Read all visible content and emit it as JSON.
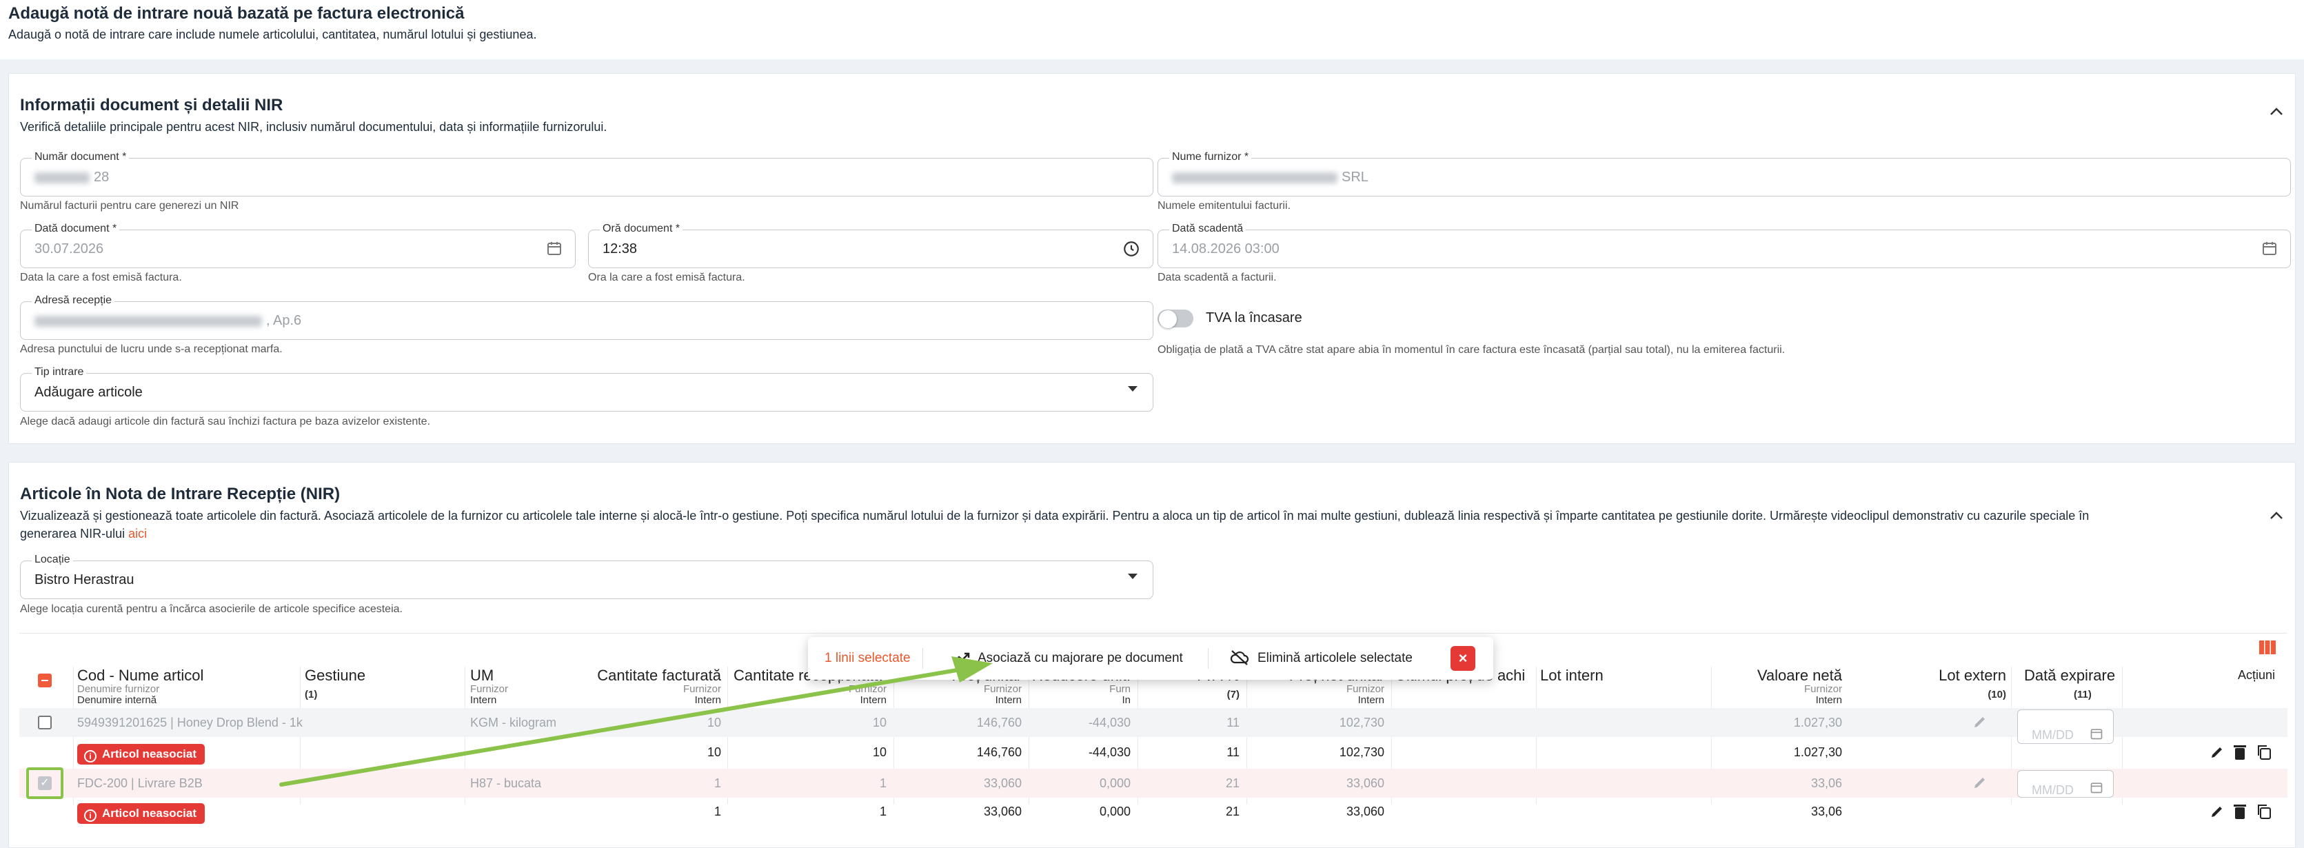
{
  "header": {
    "title": "Adaugă notă de intrare nouă bazată pe factura electronică",
    "subtitle": "Adaugă o notă de intrare care include numele articolului, cantitatea, numărul lotului și gestiunea."
  },
  "doc_section": {
    "title": "Informații document și detalii NIR",
    "subtitle": "Verifică detaliile principale pentru acest NIR, inclusiv numărul documentului, data și informațiile furnizorului.",
    "fields": {
      "numar_document": {
        "label": "Număr document *",
        "value": "28",
        "helper": "Numărul facturii pentru care generezi un NIR"
      },
      "nume_furnizor": {
        "label": "Nume furnizor *",
        "value": "SRL",
        "helper": "Numele emitentului facturii."
      },
      "data_document": {
        "label": "Dată document *",
        "value": "30.07.2026",
        "helper": "Data la care a fost emisă factura."
      },
      "ora_document": {
        "label": "Oră document *",
        "value": "12:38",
        "helper": "Ora la care a fost emisă factura."
      },
      "data_scadenta": {
        "label": "Dată scadentă",
        "value": "14.08.2026 03:00",
        "helper": "Data scadentă a facturii."
      },
      "adresa_receptie": {
        "label": "Adresă recepție",
        "value": ", Ap.6",
        "helper": "Adresa punctului de lucru unde s-a recepționat marfa."
      },
      "tva_incasare": {
        "label": "TVA la încasare",
        "helper": "Obligația de plată a TVA către stat apare abia în momentul în care factura este încasată (parțial sau total), nu la emiterea facturii."
      },
      "tip_intrare": {
        "label": "Tip intrare",
        "value": "Adăugare articole",
        "helper": "Alege dacă adaugi articole din factură sau închizi factura pe baza avizelor existente."
      }
    }
  },
  "items_section": {
    "title": "Articole în Nota de Intrare Recepție (NIR)",
    "subtitle_line1": "Vizualizează și gestionează toate articolele din factură. Asociază articolele de la furnizor cu articolele tale interne și alocă-le într-o gestiune. Poți specifica numărul lotului de la furnizor și data expirării. Pentru a aloca un tip de articol în mai multe gestiuni, dublează linia respectivă și împarte cantitatea pe gestiunile dorite. Urmărește videoclipul demonstrativ cu cazurile speciale în",
    "subtitle_line2": "generarea NIR-ului",
    "subtitle_link": "aici",
    "locatie": {
      "label": "Locație",
      "value": "Bistro Herastrau",
      "helper": "Alege locația curentă pentru a încărca asocierile de articole specifice acesteia."
    }
  },
  "toolbar": {
    "selected": "1 linii selectate",
    "associate": "Asociază cu majorare pe document",
    "remove": "Elimină articolele selectate"
  },
  "table": {
    "headers": {
      "cod": "Cod - Nume articol",
      "cod_sub1": "Denumire furnizor",
      "cod_sub2": "Denumire internă",
      "gestiune": "Gestiune",
      "gestiune_sub": "(1)",
      "um": "UM",
      "um_sub1": "Furnizor",
      "um_sub2": "Intern",
      "cant_fact": "Cantitate facturată",
      "cant_fact_sub1": "Furnizor",
      "cant_fact_sub2": "Intern",
      "cant_rec": "Cantitate recepționată",
      "cant_rec_sub1": "Furnizor",
      "cant_rec_sub2": "Intern",
      "pret": "Preț unitar",
      "pret_sub1": "Furnizor",
      "pret_sub2": "Intern",
      "reducere": "Reducere unit.",
      "reducere_sub1": "Furn",
      "reducere_sub2": "In",
      "tva": "TVA %",
      "tva_sub": "(7)",
      "pret_net": "Preț net unitar",
      "pret_net_sub1": "Furnizor",
      "pret_net_sub2": "Intern",
      "ultimul_pret": "Ultimul preț de achi",
      "lot_intern": "Lot intern",
      "valoare": "Valoare netă",
      "valoare_sub1": "Furnizor",
      "valoare_sub2": "Intern",
      "lot_extern": "Lot extern",
      "lot_extern_sub": "(10)",
      "data_exp": "Dată expirare",
      "data_exp_sub": "(11)",
      "actiuni": "Acțiuni"
    },
    "rows": [
      {
        "supplier": {
          "name": "5949391201625 | Honey Drop Blend - 1k",
          "um": "KGM - kilogram",
          "cant_fact": "10",
          "cant_rec": "10",
          "pret": "146,760",
          "reducere": "-44,030",
          "tva": "11",
          "pret_net": "102,730",
          "valoare": "1.027,30"
        },
        "badge": "Articol neasociat",
        "internal": {
          "cant_fact": "10",
          "cant_rec": "10",
          "pret": "146,760",
          "reducere": "-44,030",
          "tva": "11",
          "pret_net": "102,730",
          "valoare": "1.027,30"
        },
        "date_placeholder": "MM/DD"
      },
      {
        "supplier": {
          "name": "FDC-200 | Livrare B2B",
          "um": "H87 - bucata",
          "cant_fact": "1",
          "cant_rec": "1",
          "pret": "33,060",
          "reducere": "0,000",
          "tva": "21",
          "pret_net": "33,060",
          "valoare": "33,06"
        },
        "badge": "Articol neasociat",
        "internal": {
          "cant_fact": "1",
          "cant_rec": "1",
          "pret": "33,060",
          "reducere": "0,000",
          "tva": "21",
          "pret_net": "33,060",
          "valoare": "33,06"
        },
        "date_placeholder": "MM/DD"
      }
    ]
  },
  "colors": {
    "accent": "#e8572b",
    "danger": "#e53935",
    "highlight": "#8bc34a"
  }
}
